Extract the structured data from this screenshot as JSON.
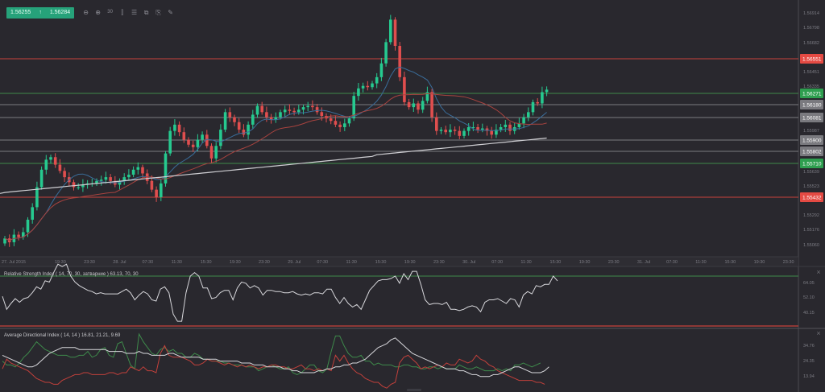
{
  "toolbar": {
    "bid": "1.56255",
    "arrow": "↑",
    "ask": "1.56284",
    "icons": [
      "zoom-out-icon",
      "zoom-in-icon",
      "timeframe-30-icon",
      "candle-type-icon",
      "indicators-icon",
      "template-icon",
      "compare-icon",
      "drawing-icon"
    ],
    "timeframe_label": "30"
  },
  "colors": {
    "background": "#29282e",
    "up": "#26c98f",
    "down": "#e04e4e",
    "ma_fast": "#3a6d9a",
    "ma_mid": "#a8433f",
    "ma_slow": "#cfcfd3",
    "resistance": "#c9423c",
    "support_green": "#3f8a4a",
    "gray_level": "#7b7b80",
    "accent_green_badge": "#2e9e4f",
    "accent_red_badge": "#e44a43",
    "accent_gray_badge": "#7a7a7f"
  },
  "chart_data": [
    {
      "type": "candlestick",
      "title": "Price (30m)",
      "price_axis": {
        "ticks": [
          "1.56914",
          "1.56798",
          "1.56682",
          "1.56451",
          "1.56335",
          "1.55987",
          "1.55639",
          "1.55523",
          "1.55292",
          "1.55176",
          "1.55060"
        ],
        "range": [
          1.55,
          1.57
        ]
      },
      "time_axis": {
        "ticks": [
          "27. Jul 2015",
          "19:30",
          "23:30",
          "28. Jul",
          "07:30",
          "11:30",
          "15:30",
          "19:30",
          "23:30",
          "29. Jul",
          "07:30",
          "11:30",
          "15:30",
          "19:30",
          "23:30",
          "30. Jul",
          "07:30",
          "11:30",
          "15:30",
          "19:30",
          "23:30",
          "31. Jul",
          "07:30",
          "11:30",
          "15:30",
          "19:30",
          "23:30"
        ]
      },
      "levels": [
        {
          "price": "1.56551",
          "color": "red",
          "kind": "resistance"
        },
        {
          "price": "1.56271",
          "color": "green",
          "kind": "current"
        },
        {
          "price": "1.56180",
          "color": "gray",
          "kind": "level"
        },
        {
          "price": "1.56081",
          "color": "gray",
          "kind": "level"
        },
        {
          "price": "1.55900",
          "color": "gray",
          "kind": "level"
        },
        {
          "price": "1.55802",
          "color": "gray",
          "kind": "level"
        },
        {
          "price": "1.55710",
          "color": "green",
          "kind": "support"
        },
        {
          "price": "1.55432",
          "color": "red",
          "kind": "support"
        }
      ],
      "series": [
        {
          "name": "MA fast",
          "color": "blue"
        },
        {
          "name": "MA mid",
          "color": "red"
        },
        {
          "name": "MA slow",
          "color": "white"
        }
      ]
    },
    {
      "type": "line",
      "title": "Relative Strength Index ( 14, 70, 30, затварние ) 63.13, 70, 30",
      "y_ticks": [
        "64.05",
        "52.10",
        "40.15"
      ],
      "levels": [
        70,
        30
      ],
      "last_value": 63.13
    },
    {
      "type": "line",
      "title": "Average Directional Index ( 14, 14 ) 16.81, 21.21, 9.69",
      "y_ticks": [
        "34.76",
        "24.35",
        "13.94"
      ],
      "series": [
        {
          "name": "ADX",
          "color": "white",
          "last": 16.81
        },
        {
          "name": "+DI",
          "color": "green",
          "last": 21.21
        },
        {
          "name": "-DI",
          "color": "red",
          "last": 9.69
        }
      ]
    }
  ]
}
